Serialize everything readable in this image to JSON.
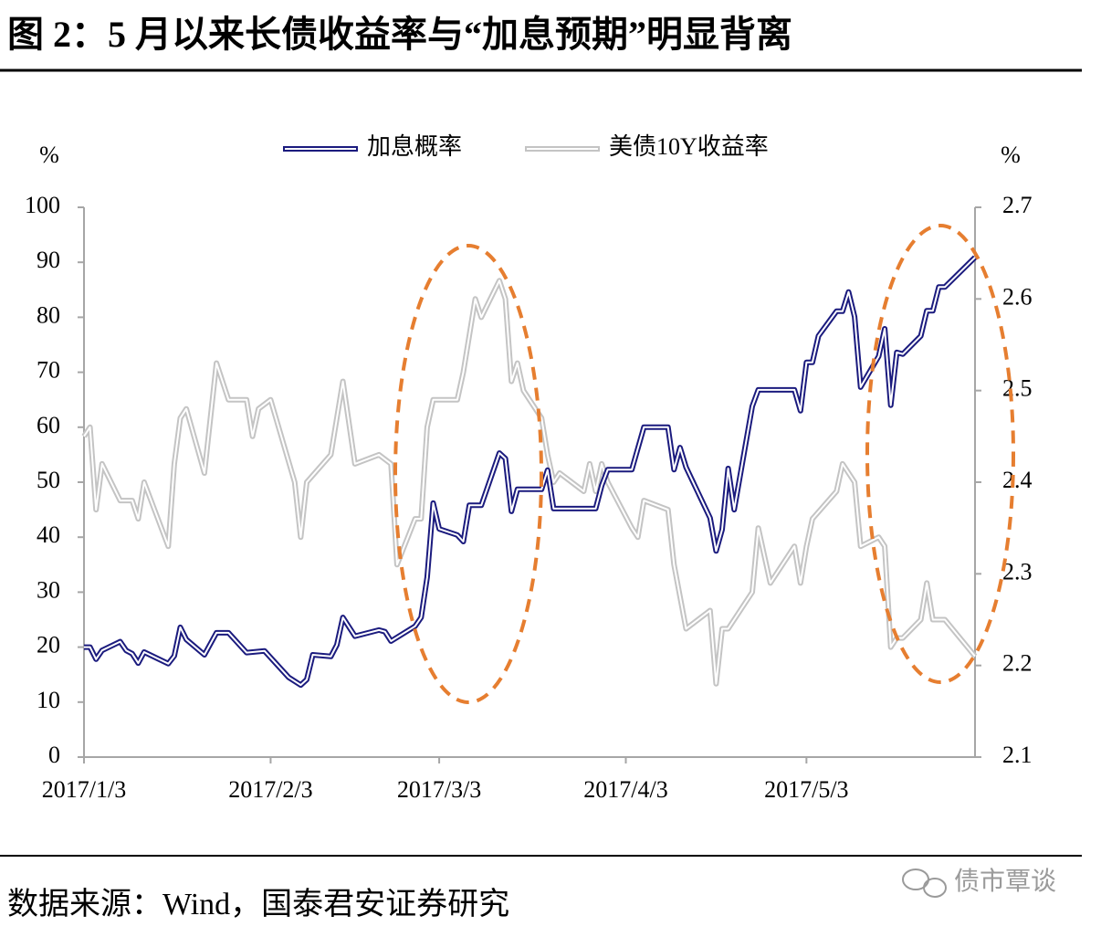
{
  "title": "图 2：5 月以来长债收益率与“加息预期”明显背离",
  "source": "数据来源：Wind，国泰君安证券研究",
  "watermark": "债市覃谈",
  "chart_data": {
    "type": "line",
    "y_label": "%",
    "y2_label": "%",
    "xlim": [
      "2017/1/3",
      "2017/5/31"
    ],
    "xticks": [
      "2017/1/3",
      "2017/2/3",
      "2017/3/3",
      "2017/4/3",
      "2017/5/3"
    ],
    "ylim": [
      0,
      100
    ],
    "yticks": [
      0,
      10,
      20,
      30,
      40,
      50,
      60,
      70,
      80,
      90,
      100
    ],
    "y2lim": [
      2.1,
      2.7
    ],
    "y2ticks": [
      2.1,
      2.2,
      2.3,
      2.4,
      2.5,
      2.6,
      2.7
    ],
    "legend": "top",
    "series": [
      {
        "name": "加息概率",
        "color": "#1b1b7e",
        "x": [
          "2017/1/3",
          "2017/1/4",
          "2017/1/5",
          "2017/1/6",
          "2017/1/9",
          "2017/1/10",
          "2017/1/11",
          "2017/1/12",
          "2017/1/13",
          "2017/1/17",
          "2017/1/18",
          "2017/1/19",
          "2017/1/20",
          "2017/1/23",
          "2017/1/25",
          "2017/1/27",
          "2017/1/30",
          "2017/2/2",
          "2017/2/6",
          "2017/2/8",
          "2017/2/9",
          "2017/2/10",
          "2017/2/13",
          "2017/2/14",
          "2017/2/15",
          "2017/2/17",
          "2017/2/21",
          "2017/2/22",
          "2017/2/23",
          "2017/2/27",
          "2017/2/28",
          "2017/3/1",
          "2017/3/2",
          "2017/3/3",
          "2017/3/6",
          "2017/3/7",
          "2017/3/8",
          "2017/3/10",
          "2017/3/13",
          "2017/3/14",
          "2017/3/15",
          "2017/3/16",
          "2017/3/20",
          "2017/3/21",
          "2017/3/22",
          "2017/3/29",
          "2017/3/30",
          "2017/3/31",
          "2017/4/4",
          "2017/4/6",
          "2017/4/10",
          "2017/4/11",
          "2017/4/12",
          "2017/4/13",
          "2017/4/17",
          "2017/4/18",
          "2017/4/19",
          "2017/4/20",
          "2017/4/21",
          "2017/4/24",
          "2017/4/25",
          "2017/5/1",
          "2017/5/2",
          "2017/5/3",
          "2017/5/4",
          "2017/5/5",
          "2017/5/8",
          "2017/5/9",
          "2017/5/10",
          "2017/5/11",
          "2017/5/12",
          "2017/5/15",
          "2017/5/16",
          "2017/5/17",
          "2017/5/18",
          "2017/5/19",
          "2017/5/22",
          "2017/5/23",
          "2017/5/24",
          "2017/5/25",
          "2017/5/26",
          "2017/5/31"
        ],
        "values": [
          20,
          20,
          17.8,
          19.4,
          21,
          19.4,
          18.8,
          17.1,
          19.1,
          17,
          18.4,
          23.6,
          21.4,
          18.6,
          22.6,
          22.6,
          19,
          19.3,
          14.5,
          13.1,
          14.1,
          18.6,
          18.3,
          20.4,
          25.4,
          22,
          23.1,
          22.8,
          21.1,
          23.8,
          25.4,
          32.7,
          46.2,
          41.5,
          40.4,
          39.2,
          45.8,
          45.8,
          55.3,
          54.3,
          44.7,
          48.7,
          48.7,
          52.2,
          45.2,
          45.2,
          49.4,
          52.3,
          52.3,
          60,
          60,
          52.3,
          56.3,
          52.7,
          43.5,
          37.5,
          41.4,
          52.5,
          45,
          63.8,
          66.8,
          66.8,
          63,
          71.8,
          71.8,
          76.6,
          81.1,
          81.1,
          84.6,
          80.1,
          67.3,
          72.9,
          77.9,
          64,
          73.6,
          73.3,
          76.6,
          81.2,
          81.2,
          85.5,
          85.5,
          90.9
        ]
      },
      {
        "name": "美债10Y收益率",
        "color": "#c4c4c4",
        "axis": "y2",
        "x": [
          "2017/1/3",
          "2017/1/4",
          "2017/1/5",
          "2017/1/6",
          "2017/1/9",
          "2017/1/11",
          "2017/1/12",
          "2017/1/13",
          "2017/1/17",
          "2017/1/18",
          "2017/1/19",
          "2017/1/20",
          "2017/1/23",
          "2017/1/25",
          "2017/1/27",
          "2017/1/30",
          "2017/1/31",
          "2017/2/1",
          "2017/2/3",
          "2017/2/7",
          "2017/2/8",
          "2017/2/9",
          "2017/2/13",
          "2017/2/15",
          "2017/2/17",
          "2017/2/21",
          "2017/2/23",
          "2017/2/24",
          "2017/2/27",
          "2017/2/28",
          "2017/3/1",
          "2017/3/2",
          "2017/3/6",
          "2017/3/7",
          "2017/3/9",
          "2017/3/10",
          "2017/3/13",
          "2017/3/14",
          "2017/3/15",
          "2017/3/16",
          "2017/3/17",
          "2017/3/20",
          "2017/3/21",
          "2017/3/22",
          "2017/3/23",
          "2017/3/27",
          "2017/3/28",
          "2017/3/29",
          "2017/3/30",
          "2017/3/31",
          "2017/4/4",
          "2017/4/5",
          "2017/4/6",
          "2017/4/10",
          "2017/4/11",
          "2017/4/13",
          "2017/4/17",
          "2017/4/18",
          "2017/4/19",
          "2017/4/20",
          "2017/4/24",
          "2017/4/25",
          "2017/4/26",
          "2017/4/27",
          "2017/5/1",
          "2017/5/2",
          "2017/5/3",
          "2017/5/4",
          "2017/5/8",
          "2017/5/9",
          "2017/5/11",
          "2017/5/12",
          "2017/5/15",
          "2017/5/16",
          "2017/5/17",
          "2017/5/18",
          "2017/5/19",
          "2017/5/22",
          "2017/5/23",
          "2017/5/24",
          "2017/5/26",
          "2017/5/31"
        ],
        "values": [
          2.45,
          2.46,
          2.37,
          2.42,
          2.38,
          2.38,
          2.36,
          2.4,
          2.33,
          2.42,
          2.47,
          2.48,
          2.41,
          2.53,
          2.49,
          2.49,
          2.45,
          2.48,
          2.49,
          2.4,
          2.34,
          2.4,
          2.43,
          2.51,
          2.42,
          2.43,
          2.42,
          2.31,
          2.36,
          2.36,
          2.46,
          2.49,
          2.49,
          2.52,
          2.6,
          2.58,
          2.62,
          2.6,
          2.51,
          2.53,
          2.5,
          2.47,
          2.43,
          2.4,
          2.41,
          2.39,
          2.42,
          2.39,
          2.42,
          2.4,
          2.35,
          2.34,
          2.38,
          2.37,
          2.31,
          2.24,
          2.26,
          2.18,
          2.24,
          2.24,
          2.28,
          2.35,
          2.32,
          2.29,
          2.33,
          2.29,
          2.33,
          2.36,
          2.39,
          2.42,
          2.4,
          2.33,
          2.34,
          2.33,
          2.22,
          2.23,
          2.23,
          2.25,
          2.29,
          2.25,
          2.25,
          2.21
        ]
      }
    ]
  }
}
